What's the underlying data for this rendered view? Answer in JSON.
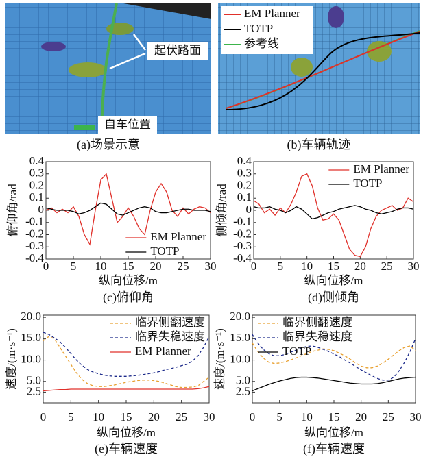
{
  "scene_panels": [
    {
      "caption": "(a)场景示意",
      "labels": [
        "起伏路面",
        "自车位置"
      ]
    },
    {
      "caption": "(b)车辆轨迹",
      "legend": [
        {
          "name": "EM Planner",
          "color": "#e0302a"
        },
        {
          "name": "TOTP",
          "color": "#000000"
        },
        {
          "name": "参考线",
          "color": "#3cb44b"
        }
      ]
    }
  ],
  "chart_data": [
    {
      "type": "line",
      "caption": "(c)俯仰角",
      "xlabel": "纵向位移/m",
      "ylabel": "俯仰角/rad",
      "x": [
        0,
        1,
        2,
        3,
        4,
        5,
        6,
        7,
        8,
        9,
        10,
        11,
        12,
        13,
        14,
        15,
        16,
        17,
        18,
        19,
        20,
        21,
        22,
        23,
        24,
        25,
        26,
        27,
        28,
        29,
        30
      ],
      "xlim": [
        0,
        30
      ],
      "xticks": [
        0,
        5,
        10,
        15,
        20,
        25,
        30
      ],
      "ylim": [
        -0.4,
        0.4
      ],
      "yticks": [
        -0.4,
        -0.3,
        -0.2,
        -0.1,
        0,
        0.1,
        0.2,
        0.3,
        0.4
      ],
      "legend": "lower right",
      "series": [
        {
          "name": "EM Planner",
          "color": "#e0302a",
          "style": "solid",
          "values": [
            0,
            0.02,
            -0.02,
            0.01,
            -0.02,
            0.03,
            -0.05,
            -0.2,
            -0.28,
            0,
            0.25,
            0.3,
            0.1,
            -0.1,
            -0.05,
            0.02,
            -0.05,
            -0.15,
            -0.2,
            0,
            0.15,
            0.22,
            0.15,
            0,
            -0.05,
            0.02,
            -0.03,
            0.01,
            0.03,
            0.02,
            -0.02
          ]
        },
        {
          "name": "TOTP",
          "color": "#000000",
          "style": "solid",
          "values": [
            0.02,
            0.01,
            0,
            0,
            0,
            -0.01,
            -0.03,
            -0.02,
            0,
            0.03,
            0.06,
            0.05,
            0.01,
            -0.03,
            -0.04,
            -0.02,
            0,
            0.02,
            0.03,
            0.02,
            -0.01,
            -0.02,
            -0.02,
            -0.01,
            0,
            0.01,
            0.01,
            0,
            0,
            0,
            -0.01
          ]
        }
      ]
    },
    {
      "type": "line",
      "caption": "(d)侧倾角",
      "xlabel": "纵向位移/m",
      "ylabel": "侧倾角/rad",
      "x": [
        0,
        1,
        2,
        3,
        4,
        5,
        6,
        7,
        8,
        9,
        10,
        11,
        12,
        13,
        14,
        15,
        16,
        17,
        18,
        19,
        20,
        21,
        22,
        23,
        24,
        25,
        26,
        27,
        28,
        29,
        30
      ],
      "xlim": [
        0,
        30
      ],
      "xticks": [
        0,
        5,
        10,
        15,
        20,
        25,
        30
      ],
      "ylim": [
        -0.4,
        0.4
      ],
      "yticks": [
        -0.4,
        -0.3,
        -0.2,
        -0.1,
        0,
        0.1,
        0.2,
        0.3,
        0.4
      ],
      "legend": "upper right",
      "series": [
        {
          "name": "EM Planner",
          "color": "#e0302a",
          "style": "solid",
          "values": [
            0.08,
            0.05,
            -0.02,
            0.01,
            -0.04,
            0.02,
            -0.02,
            0.05,
            0.15,
            0.28,
            0.3,
            0.2,
            0.02,
            -0.08,
            -0.07,
            -0.03,
            -0.08,
            -0.2,
            -0.32,
            -0.37,
            -0.38,
            -0.3,
            -0.15,
            -0.05,
            0,
            0.02,
            0.04,
            0,
            0.02,
            0.1,
            0.07
          ]
        },
        {
          "name": "TOTP",
          "color": "#000000",
          "style": "solid",
          "values": [
            0.03,
            0.02,
            0.02,
            0.03,
            0.01,
            0,
            -0.02,
            0,
            0.03,
            0.01,
            -0.03,
            -0.07,
            -0.06,
            -0.04,
            -0.02,
            -0.01,
            0.01,
            0.02,
            0.03,
            0.04,
            0.03,
            0.01,
            0,
            -0.02,
            -0.03,
            -0.02,
            -0.01,
            0.01,
            0.02,
            0.02,
            0.01
          ]
        }
      ]
    },
    {
      "type": "line",
      "caption": "(e)车辆速度",
      "xlabel": "纵向位移/m",
      "ylabel": "速度/(m·s⁻¹)",
      "x": [
        0,
        1,
        2,
        3,
        4,
        5,
        6,
        7,
        8,
        9,
        10,
        11,
        12,
        13,
        14,
        15,
        16,
        17,
        18,
        19,
        20,
        21,
        22,
        23,
        24,
        25,
        26,
        27,
        28,
        29,
        30
      ],
      "xlim": [
        0,
        30
      ],
      "xticks": [
        0,
        5,
        10,
        15,
        20,
        25,
        30
      ],
      "ylim": [
        0,
        20.5
      ],
      "yticks": [
        2.5,
        {
          "value": 5,
          "label": "5.0"
        },
        {
          "value": 10,
          "label": "10.0"
        },
        {
          "value": 15,
          "label": "15.0"
        },
        {
          "value": 20,
          "label": "20.0"
        }
      ],
      "legend": "upper right",
      "series": [
        {
          "name": "临界侧翻速度",
          "color": "#e8a030",
          "style": "dashed",
          "values": [
            14.5,
            15.5,
            15,
            13,
            11,
            9,
            7,
            5.5,
            4.5,
            4,
            3.8,
            3.8,
            4,
            4.2,
            4.5,
            4.8,
            5,
            5.2,
            5.3,
            5.3,
            5.2,
            5,
            4.6,
            4.2,
            3.8,
            3.6,
            3.6,
            3.7,
            4,
            5,
            6
          ]
        },
        {
          "name": "临界失稳速度",
          "color": "#1c2a8a",
          "style": "dashed",
          "values": [
            16.5,
            16,
            15.2,
            14.3,
            13,
            11.5,
            10,
            8.8,
            7.8,
            7.2,
            6.8,
            6.5,
            6.3,
            6.2,
            6.2,
            6.2,
            6.3,
            6.4,
            6.6,
            6.8,
            7,
            7.3,
            7.7,
            8,
            8.3,
            8.7,
            9,
            9.8,
            11,
            13,
            15.5
          ]
        },
        {
          "name": "EM Planner",
          "color": "#e0302a",
          "style": "solid",
          "values": [
            2.8,
            2.9,
            3,
            3.1,
            3.1,
            3.2,
            3.2,
            3.2,
            3.2,
            3.2,
            3.2,
            3.2,
            3.2,
            3.2,
            3.2,
            3.2,
            3.2,
            3.2,
            3.2,
            3.2,
            3.2,
            3.2,
            3.2,
            3.2,
            3.2,
            3.2,
            3.2,
            3.2,
            3.3,
            3.5,
            3.8
          ]
        }
      ]
    },
    {
      "type": "line",
      "caption": "(f)车辆速度",
      "xlabel": "纵向位移/m",
      "ylabel": "速度/(m·s⁻¹)",
      "x": [
        0,
        1,
        2,
        3,
        4,
        5,
        6,
        7,
        8,
        9,
        10,
        11,
        12,
        13,
        14,
        15,
        16,
        17,
        18,
        19,
        20,
        21,
        22,
        23,
        24,
        25,
        26,
        27,
        28,
        29,
        30
      ],
      "xlim": [
        0,
        30
      ],
      "xticks": [
        0,
        5,
        10,
        15,
        20,
        25,
        30
      ],
      "ylim": [
        0,
        20.5
      ],
      "yticks": [
        2.5,
        {
          "value": 5,
          "label": "5.0"
        },
        {
          "value": 10,
          "label": "10.0"
        },
        {
          "value": 15,
          "label": "15.0"
        },
        {
          "value": 20,
          "label": "20.0"
        }
      ],
      "legend": "upper left",
      "series": [
        {
          "name": "临界侧翻速度",
          "color": "#e8a030",
          "style": "dashed",
          "values": [
            14,
            12,
            10.5,
            9.5,
            9.2,
            9.3,
            9.6,
            10,
            10.5,
            11,
            11.5,
            12,
            12.3,
            12.6,
            12.5,
            12.2,
            11.6,
            11,
            10.2,
            9.3,
            8.6,
            8.2,
            8.2,
            8.6,
            9.3,
            10.2,
            11.2,
            12.2,
            13,
            13.3,
            12.2
          ]
        },
        {
          "name": "临界失稳速度",
          "color": "#1c2a8a",
          "style": "dashed",
          "values": [
            16,
            14,
            12.5,
            11.5,
            11,
            11,
            11.3,
            11.8,
            12.3,
            12.8,
            13.2,
            13.3,
            13,
            12.5,
            12,
            11.4,
            10.8,
            10,
            9.3,
            8.5,
            7.7,
            7,
            6.3,
            5.7,
            5.3,
            5.3,
            6,
            7.5,
            9.5,
            12,
            15
          ]
        },
        {
          "name": "TOTP",
          "color": "#000000",
          "style": "solid",
          "values": [
            2.8,
            3.3,
            3.8,
            4.3,
            4.7,
            5.1,
            5.4,
            5.7,
            5.9,
            6,
            6,
            5.9,
            5.8,
            5.6,
            5.4,
            5.2,
            5,
            4.8,
            4.6,
            4.5,
            4.4,
            4.4,
            4.4,
            4.5,
            4.7,
            5,
            5.3,
            5.6,
            5.8,
            5.9,
            6
          ]
        }
      ]
    }
  ]
}
